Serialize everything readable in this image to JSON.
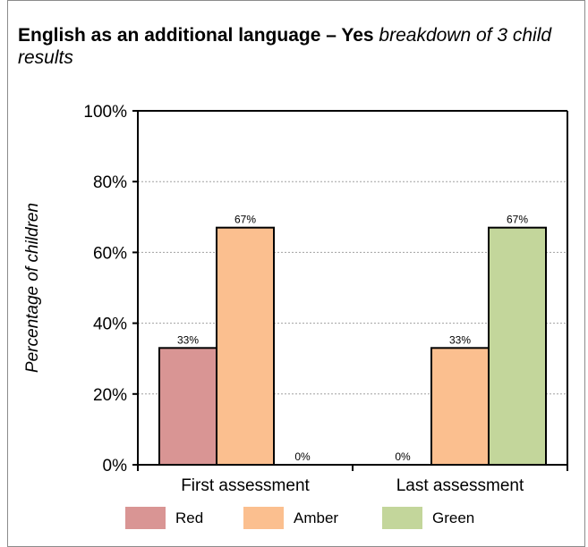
{
  "title": {
    "bold": "English as an additional language – Yes",
    "italic": " breakdown of 3 child results"
  },
  "colors": {
    "red": "#d99594",
    "amber": "#fbbf8f",
    "green": "#c3d69b",
    "grid": "#a0a0a0",
    "frame": "#8c8c8c"
  },
  "chart_data": {
    "type": "bar",
    "title": "English as an additional language – Yes breakdown of 3 child results",
    "ylabel": "Percentage of children",
    "xlabel": "",
    "categories": [
      "First assessment",
      "Last assessment"
    ],
    "series": [
      {
        "name": "Red",
        "color": "#d99594",
        "values": [
          33,
          0
        ],
        "labels": [
          "33%",
          "0%"
        ]
      },
      {
        "name": "Amber",
        "color": "#fbbf8f",
        "values": [
          67,
          33
        ],
        "labels": [
          "67%",
          "33%"
        ]
      },
      {
        "name": "Green",
        "color": "#c3d69b",
        "values": [
          0,
          67
        ],
        "labels": [
          "0%",
          "67%"
        ]
      }
    ],
    "ylim": [
      0,
      100
    ],
    "yticks": [
      0,
      20,
      40,
      60,
      80,
      100
    ],
    "ytick_labels": [
      "0%",
      "20%",
      "40%",
      "60%",
      "80%",
      "100%"
    ],
    "grid": true,
    "legend_position": "bottom"
  }
}
